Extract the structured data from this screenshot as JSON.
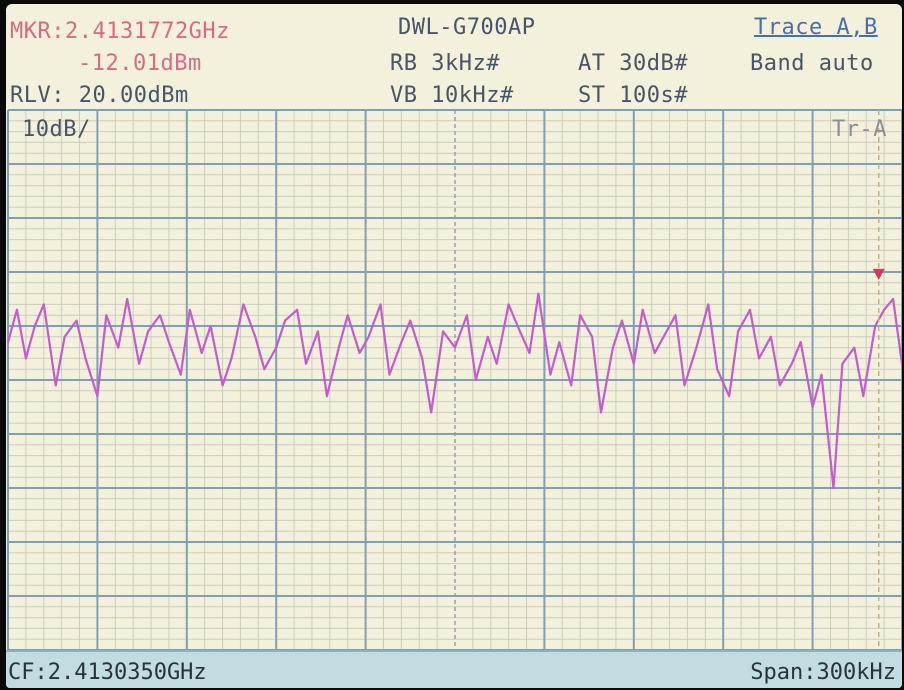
{
  "header": {
    "marker_freq": "MKR:2.4131772GHz",
    "marker_level": "-12.01dBm",
    "ref_level": "RLV: 20.00dBm",
    "device": "DWL-G700AP",
    "rbw": "RB  3kHz#",
    "vbw": "VB  10kHz#",
    "atten": "AT  30dB#",
    "sweep": "ST  100s#",
    "trace_menu": "Trace A,B",
    "band": "Band auto",
    "scale": "10dB/",
    "trace_label": "Tr-A"
  },
  "footer": {
    "center_freq": "CF:2.4130350GHz",
    "span": "Span:300kHz"
  },
  "colors": {
    "trace": "#c45ccc",
    "marker": "#d23a5a",
    "grid_major": "#7fa0b4",
    "grid_minor": "#c9ccc0",
    "background": "#f3f1dc"
  },
  "chart_data": {
    "type": "line",
    "title": "DWL-G700AP",
    "reference_level_dbm": 20.0,
    "scale_db_per_div": 10,
    "center_freq_ghz": 2.413035,
    "span_khz": 300,
    "xlim_ghz": [
      2.412885,
      2.413185
    ],
    "ylim_dbm": [
      -80,
      20
    ],
    "grid": true,
    "marker": {
      "freq_ghz": 2.4131772,
      "level_dbm": -12.01
    },
    "series": [
      {
        "x_ghz": [
          2.412885,
          2.412888,
          2.412891,
          2.412894,
          2.412897,
          2.412901,
          2.412904,
          2.412908,
          2.412911,
          2.412915,
          2.412918,
          2.412922,
          2.412925,
          2.412929,
          2.412932,
          2.412936,
          2.412939,
          2.412943,
          2.412946,
          2.41295,
          2.412953,
          2.412957,
          2.41296,
          2.412964,
          2.412968,
          2.412971,
          2.412975,
          2.412978,
          2.412982,
          2.412985,
          2.412989,
          2.412992,
          2.412996,
          2.412999,
          2.413003,
          2.413006,
          2.41301,
          2.413013,
          2.413017,
          2.41302,
          2.413024,
          2.413027,
          2.413031,
          2.413035,
          2.413039,
          2.413042,
          2.413046,
          2.413049,
          2.413053,
          2.413056,
          2.41306,
          2.413063,
          2.413067,
          2.41307,
          2.413074,
          2.413077,
          2.413081,
          2.413084,
          2.413088,
          2.413091,
          2.413095,
          2.413098,
          2.413102,
          2.413105,
          2.413109,
          2.413112,
          2.413116,
          2.41312,
          2.413123,
          2.413127,
          2.41313,
          2.413134,
          2.413137,
          2.413141,
          2.413144,
          2.413148,
          2.413151,
          2.413155,
          2.413158,
          2.413162,
          2.413165,
          2.413169,
          2.413172,
          2.413176,
          2.413179,
          2.413182,
          2.413185
        ],
        "y_dbm": [
          -23,
          -17,
          -26,
          -20,
          -16,
          -31,
          -22,
          -19,
          -26,
          -33,
          -18,
          -24,
          -15,
          -27,
          -21,
          -18,
          -23,
          -29,
          -17,
          -25,
          -20,
          -31,
          -26,
          -16,
          -22,
          -28,
          -24,
          -19,
          -17,
          -27,
          -21,
          -33,
          -24,
          -18,
          -25,
          -22,
          -16,
          -29,
          -23,
          -19,
          -26,
          -36,
          -21,
          -24,
          -18,
          -30,
          -22,
          -27,
          -16,
          -20,
          -25,
          -14,
          -29,
          -23,
          -31,
          -18,
          -22,
          -36,
          -24,
          -19,
          -27,
          -17,
          -25,
          -22,
          -18,
          -31,
          -24,
          -16,
          -28,
          -33,
          -21,
          -17,
          -26,
          -22,
          -31,
          -27,
          -23,
          -35,
          -29,
          -50,
          -27,
          -24,
          -33,
          -20,
          -17,
          -15,
          -27
        ]
      }
    ]
  }
}
